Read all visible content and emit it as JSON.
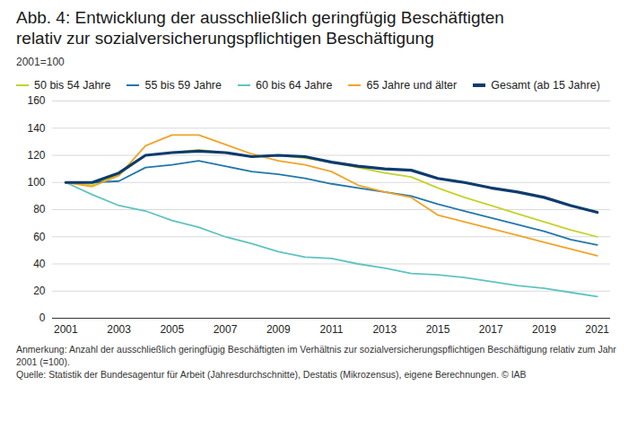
{
  "chart_data": {
    "type": "line",
    "title": "Abb. 4: Entwicklung der ausschließlich geringfügig Beschäftigten\nrelativ zur sozialversicherungspflichtigen Beschäftigung",
    "subtitle": "2001=100",
    "x": [
      2001,
      2002,
      2003,
      2004,
      2005,
      2006,
      2007,
      2008,
      2009,
      2010,
      2011,
      2012,
      2013,
      2014,
      2015,
      2016,
      2017,
      2018,
      2019,
      2020,
      2021
    ],
    "series": [
      {
        "name": "50 bis 54 Jahre",
        "color": "#c3d32a",
        "line_style": "solid",
        "values": [
          100,
          98,
          106,
          120,
          122,
          124,
          122,
          119,
          120,
          118,
          115,
          111,
          107,
          104,
          96,
          89,
          83,
          77,
          71,
          65,
          60
        ]
      },
      {
        "name": "55 bis 59 Jahre",
        "color": "#2277aa",
        "line_style": "solid",
        "values": [
          100,
          100,
          101,
          111,
          113,
          116,
          112,
          108,
          106,
          103,
          99,
          96,
          93,
          90,
          84,
          79,
          74,
          69,
          64,
          58,
          54
        ]
      },
      {
        "name": "60 bis 64 Jahre",
        "color": "#5ec4c0",
        "line_style": "solid",
        "values": [
          100,
          91,
          83,
          79,
          72,
          67,
          60,
          55,
          49,
          45,
          44,
          40,
          37,
          33,
          32,
          30,
          27,
          24,
          22,
          19,
          16
        ]
      },
      {
        "name": "65 Jahre und älter",
        "color": "#f0a428",
        "line_style": "solid",
        "values": [
          100,
          97,
          105,
          127,
          135,
          135,
          128,
          121,
          116,
          113,
          108,
          98,
          93,
          89,
          76,
          71,
          66,
          61,
          56,
          51,
          46
        ]
      },
      {
        "name": "Gesamt (ab 15 Jahre)",
        "color": "#0d3b6e",
        "line_style": "thick",
        "values": [
          100,
          100,
          107,
          120,
          122,
          123,
          122,
          119,
          120,
          119,
          115,
          112,
          110,
          109,
          103,
          100,
          96,
          93,
          89,
          83,
          78
        ]
      }
    ],
    "xlim": [
      2000.5,
      2021.5
    ],
    "xticks": [
      2001,
      2003,
      2005,
      2007,
      2009,
      2011,
      2013,
      2015,
      2017,
      2019,
      2021
    ],
    "ylim": [
      0,
      160
    ],
    "yticks": [
      0,
      20,
      40,
      60,
      80,
      100,
      120,
      140,
      160
    ],
    "grid": true,
    "legend": "top",
    "note": "Anmerkung: Anzahl der ausschließlich geringfügig Beschäftigten im Verhältnis zur sozialversicherungspflichtigen Beschäftigung relativ zum Jahr 2001 (=100).",
    "source": "Quelle: Statistik der Bundesagentur für Arbeit (Jahresdurchschnitte), Destatis (Mikrozensus), eigene Berechnungen. © IAB"
  }
}
